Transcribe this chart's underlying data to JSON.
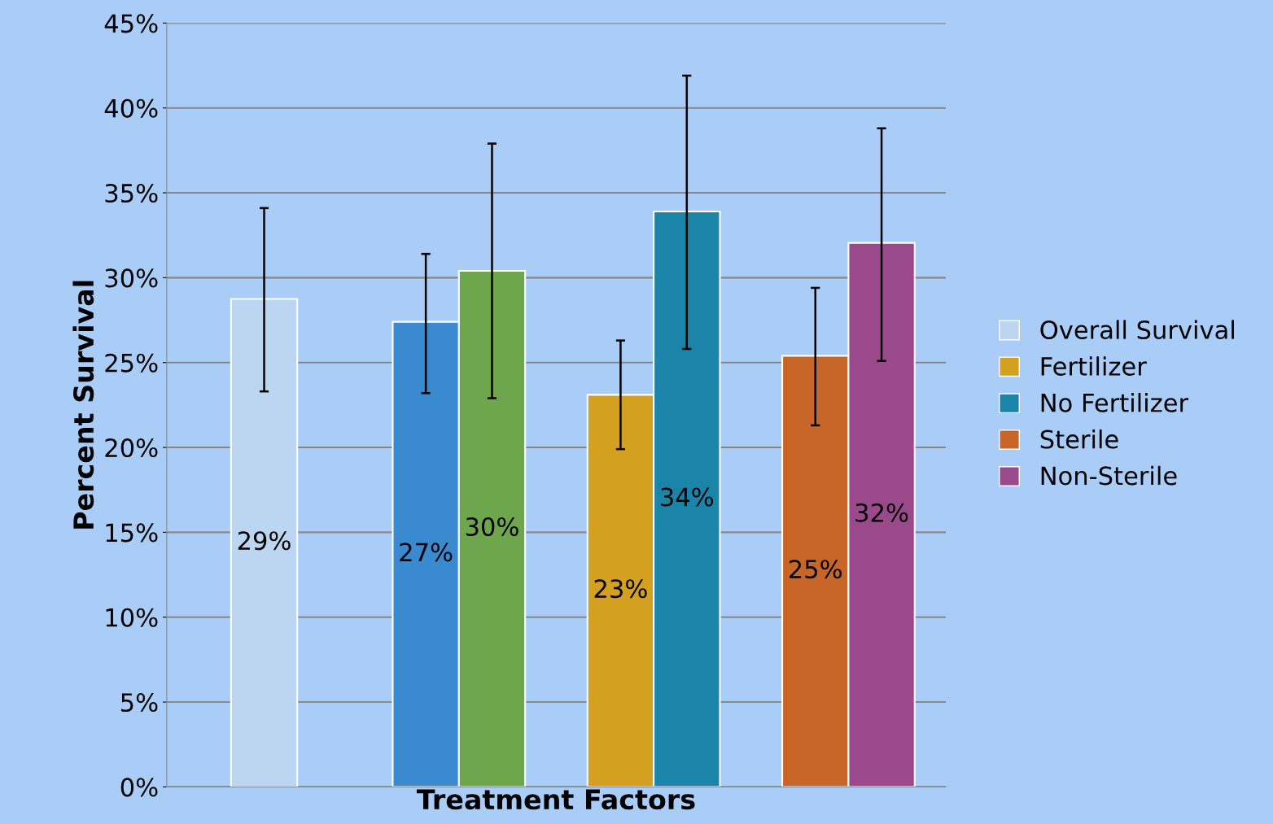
{
  "chart_data": {
    "type": "bar",
    "xlabel": "Treatment Factors",
    "ylabel": "Percent Survival",
    "categories": [
      null,
      null,
      null,
      null
    ],
    "series": [
      {
        "name": "Overall Survival",
        "color": "#bcd6f2",
        "values": [
          28.75,
          null,
          null,
          null
        ],
        "errors": [
          [
            23.3,
            34.1
          ],
          null,
          null,
          null
        ],
        "value_labels": [
          "29%",
          null,
          null,
          null
        ]
      },
      {
        "color": "#3a8ad0",
        "values": [
          null,
          27.4,
          null,
          null
        ],
        "errors": [
          null,
          [
            23.2,
            31.4
          ],
          null,
          null
        ],
        "value_labels": [
          null,
          "27%",
          null,
          null
        ]
      },
      {
        "color": "#6ea64e",
        "values": [
          null,
          30.4,
          null,
          null
        ],
        "errors": [
          null,
          [
            22.9,
            37.9
          ],
          null,
          null
        ],
        "value_labels": [
          null,
          "30%",
          null,
          null
        ]
      },
      {
        "name": "Fertilizer",
        "color": "#d4a020",
        "values": [
          null,
          null,
          23.1,
          null
        ],
        "errors": [
          null,
          null,
          [
            19.9,
            26.3
          ],
          null
        ],
        "value_labels": [
          null,
          null,
          "23%",
          null
        ]
      },
      {
        "name": "No Fertilizer",
        "color": "#1a85a8",
        "values": [
          null,
          null,
          33.9,
          null
        ],
        "errors": [
          null,
          null,
          [
            25.8,
            41.9
          ],
          null
        ],
        "value_labels": [
          null,
          null,
          "34%",
          null
        ]
      },
      {
        "name": "Sterile",
        "color": "#c86528",
        "values": [
          null,
          null,
          null,
          25.4
        ],
        "errors": [
          null,
          null,
          null,
          [
            21.3,
            29.4
          ]
        ],
        "value_labels": [
          null,
          null,
          null,
          "25%"
        ]
      },
      {
        "name": "Non-Sterile",
        "color": "#9a4a8a",
        "values": [
          null,
          null,
          null,
          32.05
        ],
        "errors": [
          null,
          null,
          null,
          [
            25.1,
            38.8
          ]
        ],
        "value_labels": [
          null,
          null,
          null,
          "32%"
        ]
      }
    ],
    "ylim": [
      0,
      45
    ],
    "yticks": [
      {
        "value": 0,
        "label": "0%"
      },
      {
        "value": 5,
        "label": "5%"
      },
      {
        "value": 10,
        "label": "10%"
      },
      {
        "value": 15,
        "label": "15%"
      },
      {
        "value": 20,
        "label": "20%"
      },
      {
        "value": 25,
        "label": "25%"
      },
      {
        "value": 30,
        "label": "30%"
      },
      {
        "value": 35,
        "label": "35%"
      },
      {
        "value": 40,
        "label": "40%"
      },
      {
        "value": 45,
        "label": "45%"
      }
    ],
    "grid": "y",
    "legend": "right"
  }
}
